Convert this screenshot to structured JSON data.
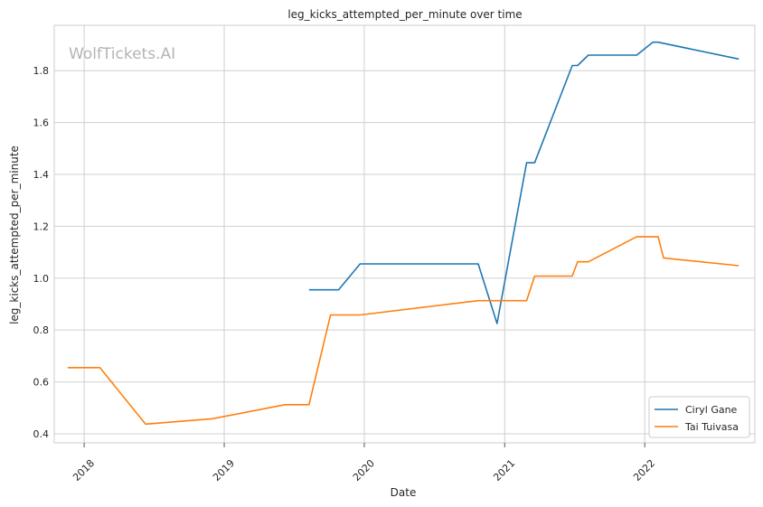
{
  "chart_data": {
    "type": "line",
    "title": "leg_kicks_attempted_per_minute over time",
    "xlabel": "Date",
    "ylabel": "leg_kicks_attempted_per_minute",
    "watermark": "WolfTickets.AI",
    "x_ticks": [
      "2018",
      "2019",
      "2020",
      "2021",
      "2022"
    ],
    "y_ticks": [
      0.4,
      0.6,
      0.8,
      1.0,
      1.2,
      1.4,
      1.6,
      1.8
    ],
    "xlim": [
      "2017-10-15",
      "2022-10-15"
    ],
    "ylim": [
      0.365,
      1.975
    ],
    "grid": true,
    "legend_position": "lower-right",
    "series": [
      {
        "name": "Ciryl Gane",
        "color": "#1f77b4",
        "points": [
          {
            "x": "2019-08-10",
            "y": 0.955
          },
          {
            "x": "2019-10-26",
            "y": 0.955
          },
          {
            "x": "2019-12-21",
            "y": 1.055
          },
          {
            "x": "2020-10-24",
            "y": 1.055
          },
          {
            "x": "2020-12-12",
            "y": 0.825
          },
          {
            "x": "2021-02-27",
            "y": 1.445
          },
          {
            "x": "2021-03-20",
            "y": 1.445
          },
          {
            "x": "2021-06-26",
            "y": 1.82
          },
          {
            "x": "2021-07-10",
            "y": 1.82
          },
          {
            "x": "2021-08-07",
            "y": 1.86
          },
          {
            "x": "2021-12-11",
            "y": 1.86
          },
          {
            "x": "2022-01-22",
            "y": 1.91
          },
          {
            "x": "2022-02-05",
            "y": 1.91
          },
          {
            "x": "2022-09-03",
            "y": 1.845
          }
        ]
      },
      {
        "name": "Tai Tuivasa",
        "color": "#ff7f0e",
        "points": [
          {
            "x": "2017-11-19",
            "y": 0.655
          },
          {
            "x": "2018-02-11",
            "y": 0.655
          },
          {
            "x": "2018-06-10",
            "y": 0.437
          },
          {
            "x": "2018-12-02",
            "y": 0.458
          },
          {
            "x": "2019-06-08",
            "y": 0.512
          },
          {
            "x": "2019-08-10",
            "y": 0.512
          },
          {
            "x": "2019-10-05",
            "y": 0.858
          },
          {
            "x": "2019-12-21",
            "y": 0.858
          },
          {
            "x": "2020-10-24",
            "y": 0.913
          },
          {
            "x": "2021-02-27",
            "y": 0.913
          },
          {
            "x": "2021-03-20",
            "y": 1.008
          },
          {
            "x": "2021-06-26",
            "y": 1.008
          },
          {
            "x": "2021-07-10",
            "y": 1.063
          },
          {
            "x": "2021-08-07",
            "y": 1.063
          },
          {
            "x": "2021-12-11",
            "y": 1.16
          },
          {
            "x": "2022-02-05",
            "y": 1.16
          },
          {
            "x": "2022-02-19",
            "y": 1.078
          },
          {
            "x": "2022-09-03",
            "y": 1.048
          }
        ]
      }
    ]
  }
}
